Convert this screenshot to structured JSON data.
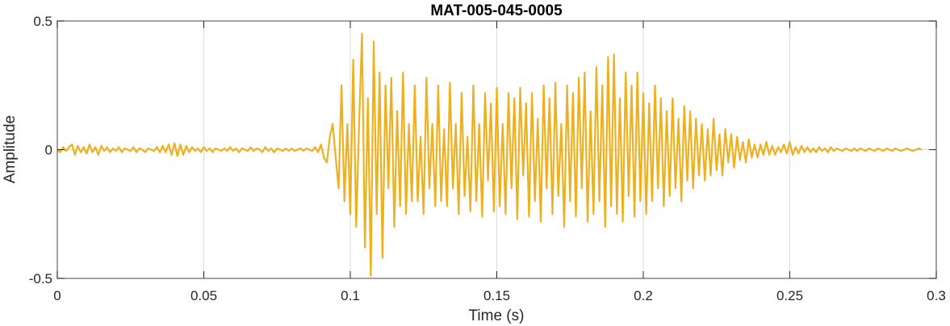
{
  "chart_data": {
    "type": "line",
    "title": "MAT-005-045-0005",
    "xlabel": "Time (s)",
    "ylabel": "Amplitude",
    "xlim": [
      0,
      0.3
    ],
    "ylim": [
      -0.5,
      0.5
    ],
    "xticks": [
      "0",
      "0.05",
      "0.1",
      "0.15",
      "0.2",
      "0.25",
      "0.3"
    ],
    "xtick_values": [
      0,
      0.05,
      0.1,
      0.15,
      0.2,
      0.25,
      0.3
    ],
    "yticks": [
      "-0.5",
      "0",
      "0.5"
    ],
    "ytick_values": [
      -0.5,
      0,
      0.5
    ],
    "grid": true,
    "line_color": "#EDB120",
    "x_start": 0,
    "x_step": 0.001,
    "values": [
      0,
      -0.01,
      0.01,
      -0.005,
      0.01,
      0.02,
      -0.02,
      0.015,
      -0.01,
      0.01,
      -0.015,
      0.02,
      -0.01,
      0.01,
      -0.02,
      0.015,
      -0.005,
      0.01,
      -0.01,
      0.005,
      -0.005,
      0.01,
      -0.01,
      0.005,
      0,
      -0.005,
      0.01,
      -0.01,
      0.005,
      0,
      -0.01,
      0.005,
      0,
      -0.005,
      0.01,
      -0.01,
      0.015,
      -0.01,
      0.02,
      -0.02,
      0.025,
      -0.025,
      0.02,
      -0.02,
      0.015,
      -0.01,
      0.01,
      -0.005,
      0.005,
      -0.01,
      0.01,
      -0.005,
      0.005,
      -0.01,
      0.005,
      0,
      -0.005,
      0.005,
      -0.005,
      0.01,
      -0.005,
      0.005,
      -0.01,
      0.005,
      0,
      -0.005,
      0.01,
      -0.005,
      0.005,
      0,
      -0.01,
      0.01,
      -0.005,
      0.005,
      -0.01,
      0.005,
      0,
      -0.005,
      0.005,
      -0.005,
      0.005,
      -0.005,
      0,
      0.005,
      -0.005,
      0.005,
      0,
      -0.005,
      0.01,
      -0.01,
      0.02,
      -0.03,
      -0.05,
      0.05,
      0.1,
      -0.03,
      -0.15,
      0.25,
      -0.2,
      0.1,
      -0.25,
      0.35,
      -0.3,
      0.1,
      0.45,
      -0.38,
      0.2,
      -0.49,
      0.42,
      -0.25,
      0.3,
      -0.42,
      0.25,
      -0.15,
      0.28,
      -0.3,
      0.15,
      -0.22,
      0.3,
      -0.25,
      0.1,
      -0.2,
      0.25,
      -0.2,
      0.05,
      -0.25,
      0.28,
      -0.15,
      0.1,
      -0.22,
      0.25,
      -0.2,
      0.08,
      -0.22,
      0.26,
      -0.15,
      0.1,
      -0.25,
      0.22,
      -0.18,
      0.05,
      -0.24,
      0.25,
      -0.2,
      0.1,
      -0.26,
      0.22,
      -0.12,
      0.18,
      -0.24,
      0.24,
      -0.22,
      0.1,
      -0.25,
      0.22,
      -0.15,
      0.2,
      -0.27,
      0.24,
      -0.1,
      0.18,
      -0.26,
      0.22,
      -0.2,
      0.12,
      -0.28,
      0.25,
      -0.15,
      0.2,
      -0.25,
      0.26,
      -0.18,
      0.1,
      -0.3,
      0.25,
      -0.2,
      0.22,
      -0.26,
      0.28,
      -0.15,
      0.3,
      -0.28,
      0.15,
      -0.25,
      0.32,
      -0.2,
      0.25,
      -0.3,
      0.36,
      -0.22,
      0.37,
      -0.25,
      0.2,
      -0.28,
      0.3,
      -0.18,
      0.25,
      -0.26,
      0.3,
      -0.2,
      0.22,
      -0.25,
      0.18,
      -0.2,
      0.25,
      -0.15,
      0.2,
      -0.22,
      0.15,
      -0.18,
      0.2,
      -0.15,
      0.12,
      -0.2,
      0.17,
      -0.12,
      0.15,
      -0.15,
      0.12,
      -0.1,
      0.1,
      -0.12,
      0.08,
      -0.1,
      0.12,
      -0.08,
      0.06,
      -0.1,
      0.08,
      -0.05,
      0.06,
      -0.07,
      0.05,
      -0.04,
      0.03,
      -0.05,
      0.04,
      -0.03,
      0.02,
      -0.03,
      0.02,
      -0.02,
      0.03,
      -0.02,
      0.015,
      -0.02,
      0.01,
      -0.01,
      0.02,
      -0.015,
      0.03,
      -0.02,
      0.01,
      -0.015,
      0.015,
      -0.01,
      0.01,
      -0.01,
      0.005,
      -0.01,
      0.01,
      -0.005,
      0.005,
      -0.01,
      0.01,
      -0.005,
      0.005,
      0,
      -0.005,
      0.005,
      0,
      -0.005,
      0.005,
      -0.005,
      0.005,
      0,
      -0.005,
      0.005,
      0,
      -0.005,
      0.005,
      0,
      -0.005,
      0.005,
      0,
      -0.005,
      0.005,
      0,
      -0.005,
      0,
      0.005,
      0,
      -0.005,
      0,
      0.005,
      0
    ]
  }
}
